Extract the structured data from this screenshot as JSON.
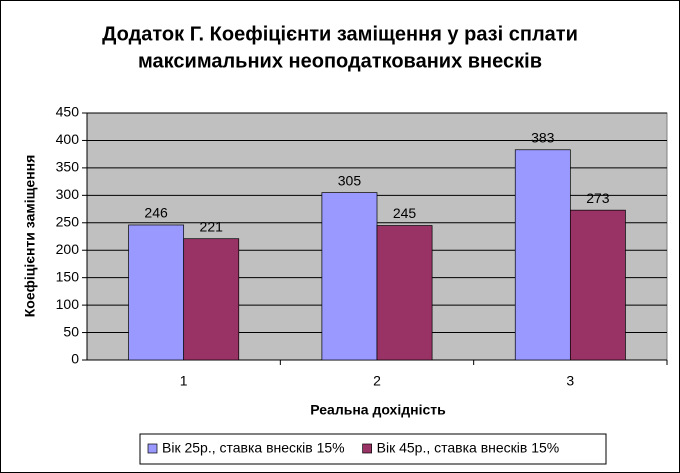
{
  "chart_data": {
    "type": "bar",
    "title": [
      "Додаток Г. Коефіцієнти заміщення у разі сплати",
      "максимальних неоподаткованих внесків"
    ],
    "x_label": "Реальна дохідність",
    "y_label": "Коефіцієнти заміщення",
    "categories": [
      "1",
      "2",
      "3"
    ],
    "series": [
      {
        "name": "Вік 25р., ставка внесків 15%",
        "color": "#9999ff",
        "values": [
          246,
          305,
          383
        ]
      },
      {
        "name": "Вік 45р., ставка внесків 15%",
        "color": "#993366",
        "values": [
          221,
          245,
          273
        ]
      }
    ],
    "ylim": [
      0,
      450
    ],
    "yticks": [
      0,
      50,
      100,
      150,
      200,
      250,
      300,
      350,
      400,
      450
    ],
    "grid": true,
    "legend": "bottom"
  }
}
